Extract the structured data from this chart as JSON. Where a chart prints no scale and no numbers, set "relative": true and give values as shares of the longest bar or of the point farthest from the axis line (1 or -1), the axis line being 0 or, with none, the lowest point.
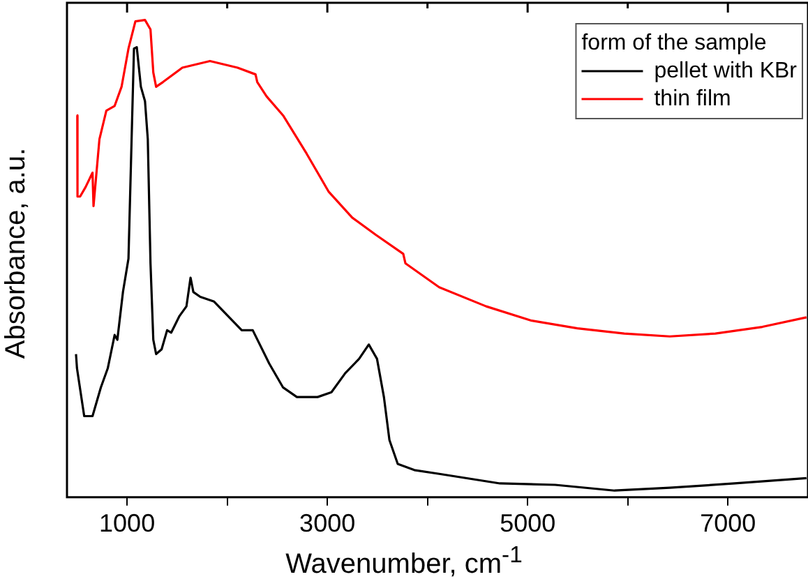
{
  "chart_data": {
    "type": "line",
    "xlabel": "Wavenumber, cm$^{-1}$",
    "ylabel": "Absorbance, a.u.",
    "legend_title": "form of the sample",
    "relative": true,
    "legend": "top right",
    "marker": "none",
    "line_style": "solid",
    "grid": false,
    "xlim": [
      400,
      7800
    ],
    "xticks": [
      1000,
      {
        "value": 2000,
        "label": null
      },
      3000,
      {
        "value": 4000,
        "label": null
      },
      5000,
      {
        "value": 6000,
        "label": null
      },
      7000
    ],
    "series": [
      {
        "name": "pellet with KBr",
        "color": "#000000",
        "x": [
          490,
          500,
          572,
          655,
          738,
          807,
          876,
          903,
          959,
          1014,
          1069,
          1097,
          1138,
          1179,
          1207,
          1234,
          1262,
          1290,
          1345,
          1400,
          1441,
          1524,
          1593,
          1634,
          1662,
          1731,
          1869,
          2007,
          2145,
          2255,
          2420,
          2558,
          2696,
          2903,
          3041,
          3179,
          3317,
          3414,
          3496,
          3565,
          3620,
          3703,
          3869,
          4117,
          4724,
          5275,
          5868,
          6420,
          7068,
          7785
        ],
        "values": [
          0.3,
          0.27,
          0.17,
          0.17,
          0.23,
          0.27,
          0.34,
          0.33,
          0.43,
          0.5,
          0.94,
          0.943,
          0.86,
          0.83,
          0.75,
          0.49,
          0.33,
          0.3,
          0.31,
          0.35,
          0.345,
          0.38,
          0.4,
          0.46,
          0.43,
          0.42,
          0.41,
          0.38,
          0.35,
          0.35,
          0.28,
          0.23,
          0.21,
          0.21,
          0.22,
          0.26,
          0.29,
          0.32,
          0.29,
          0.21,
          0.12,
          0.07,
          0.057,
          0.049,
          0.029,
          0.026,
          0.014,
          0.02,
          0.029,
          0.04
        ]
      },
      {
        "name": "thin film",
        "color": "#ff0000",
        "x": [
          503,
          505,
          531,
          586,
          655,
          665,
          724,
          793,
          876,
          945,
          1014,
          1083,
          1179,
          1234,
          1262,
          1290,
          1359,
          1552,
          1828,
          2103,
          2283,
          2300,
          2393,
          2558,
          2793,
          3014,
          3248,
          3483,
          3758,
          3780,
          4117,
          4586,
          5041,
          5496,
          5965,
          6420,
          6875,
          7344,
          7785
        ],
        "values": [
          0.8,
          0.63,
          0.63,
          0.65,
          0.68,
          0.61,
          0.75,
          0.81,
          0.82,
          0.86,
          0.94,
          0.997,
          1,
          0.98,
          0.89,
          0.86,
          0.87,
          0.9,
          0.914,
          0.9,
          0.886,
          0.87,
          0.84,
          0.8,
          0.72,
          0.64,
          0.586,
          0.55,
          0.51,
          0.49,
          0.44,
          0.4,
          0.37,
          0.354,
          0.343,
          0.337,
          0.343,
          0.357,
          0.377
        ]
      }
    ]
  }
}
